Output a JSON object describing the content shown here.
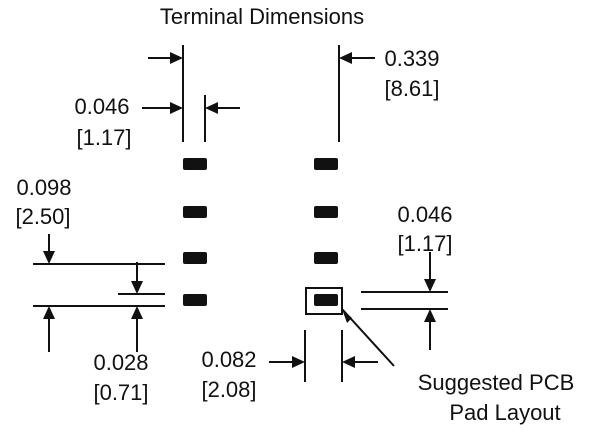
{
  "title": "Terminal Dimensions",
  "dimensions": {
    "spacing_0339": {
      "inch": "0.339",
      "mm": "[8.61]"
    },
    "pad_width_0046": {
      "inch": "0.046",
      "mm": "[1.17]"
    },
    "pitch_0098": {
      "inch": "0.098",
      "mm": "[2.50]"
    },
    "pad_height_0046": {
      "inch": "0.046",
      "mm": "[1.17]"
    },
    "gap_0028": {
      "inch": "0.028",
      "mm": "[0.71]"
    },
    "pad_length_0082": {
      "inch": "0.082",
      "mm": "[2.08]"
    }
  },
  "callout": {
    "line1": "Suggested PCB",
    "line2": "Pad Layout"
  },
  "colors": {
    "ink": "#111111",
    "background": "#ffffff"
  }
}
